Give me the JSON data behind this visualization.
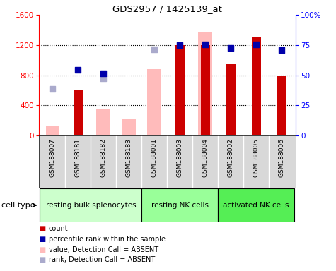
{
  "title": "GDS2957 / 1425139_at",
  "samples": [
    "GSM188007",
    "GSM188181",
    "GSM188182",
    "GSM188183",
    "GSM188001",
    "GSM188003",
    "GSM188004",
    "GSM188002",
    "GSM188005",
    "GSM188006"
  ],
  "count": [
    null,
    600,
    null,
    null,
    null,
    1200,
    1200,
    950,
    1310,
    800
  ],
  "percentile_rank": [
    null,
    870,
    820,
    null,
    null,
    1200,
    1210,
    1160,
    1205,
    1130
  ],
  "value_absent": [
    120,
    null,
    360,
    220,
    880,
    null,
    1380,
    null,
    null,
    null
  ],
  "rank_absent": [
    620,
    null,
    760,
    null,
    1140,
    null,
    null,
    null,
    null,
    null
  ],
  "groups": [
    {
      "label": "resting bulk splenocytes",
      "start": 0,
      "end": 4,
      "color": "#ccffcc"
    },
    {
      "label": "resting NK cells",
      "start": 4,
      "end": 7,
      "color": "#99ff99"
    },
    {
      "label": "activated NK cells",
      "start": 7,
      "end": 10,
      "color": "#55ee55"
    }
  ],
  "ylim_left": [
    0,
    1600
  ],
  "ylim_right": [
    0,
    100
  ],
  "yticks_left": [
    0,
    400,
    800,
    1200,
    1600
  ],
  "yticks_right": [
    0,
    25,
    50,
    75,
    100
  ],
  "yticklabels_right": [
    "0",
    "25",
    "50",
    "75",
    "100%"
  ],
  "color_count": "#cc0000",
  "color_percentile": "#0000aa",
  "color_value_absent": "#ffbbbb",
  "color_rank_absent": "#aaaacc",
  "cell_type_label": "cell type",
  "bg_color": "#d8d8d8",
  "legend_items": [
    {
      "color": "#cc0000",
      "label": "count"
    },
    {
      "color": "#0000aa",
      "label": "percentile rank within the sample"
    },
    {
      "color": "#ffbbbb",
      "label": "value, Detection Call = ABSENT"
    },
    {
      "color": "#aaaacc",
      "label": "rank, Detection Call = ABSENT"
    }
  ]
}
